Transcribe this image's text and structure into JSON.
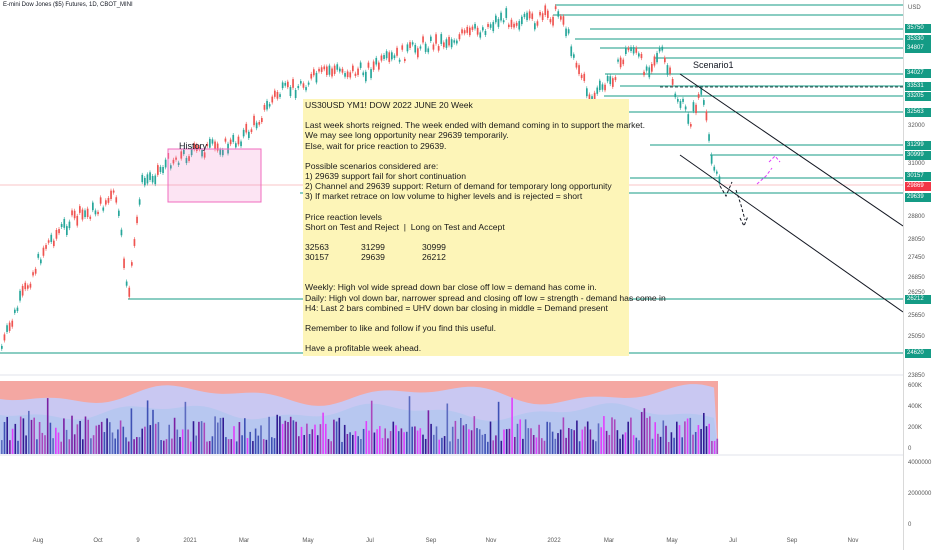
{
  "header": {
    "symbol_title": "E-mini Dow Jones ($5) Futures, 1D, CBOT_MINI"
  },
  "price_axis": {
    "currency": "USD",
    "ticks": [
      "32000",
      "31000",
      "28800",
      "28050",
      "27450",
      "26850",
      "26250",
      "25650",
      "25050",
      "23850"
    ],
    "tags": [
      {
        "label": "35750",
        "color": "#149b85"
      },
      {
        "label": "35330",
        "color": "#149b85"
      },
      {
        "label": "34807",
        "color": "#149b85"
      },
      {
        "label": "34027",
        "color": "#149b85"
      },
      {
        "label": "33531",
        "color": "#149b85"
      },
      {
        "label": "33205",
        "color": "#149b85"
      },
      {
        "label": "32563",
        "color": "#149b85"
      },
      {
        "label": "31299",
        "color": "#149b85"
      },
      {
        "label": "30999",
        "color": "#149b85"
      },
      {
        "label": "30157",
        "color": "#149b85"
      },
      {
        "label": "29869",
        "color": "#f23645"
      },
      {
        "label": "29639",
        "color": "#149b85"
      },
      {
        "label": "26212",
        "color": "#149b85"
      },
      {
        "label": "24620",
        "color": "#149b85"
      }
    ],
    "volume_ticks": [
      "600K",
      "400K",
      "200K",
      "0"
    ],
    "indicator_ticks": [
      "4000000",
      "2000000",
      "0"
    ]
  },
  "annotations": {
    "history_label": "History",
    "scenario_label": "Scenario1"
  },
  "note": {
    "title": "US30USD YM1! DOW 2022 JUNE 20 Week",
    "para1": [
      "Last week shorts reigned. The week ended with demand coming in to support the market.",
      "We may see long opportunity near 29639 temporarily.",
      "Else, wait for price reaction to 29639."
    ],
    "para2": [
      "Possible scenarios considered are:",
      "1) 29639 support fail for short continuation",
      "2) Channel and 29639 support: Return of demand for temporary long opportunity",
      "3) If market retrace on low volume to higher levels and is rejected = short"
    ],
    "para3": [
      "Price reaction levels",
      "Short on Test and Reject  |  Long on Test and Accept"
    ],
    "levels_row1": [
      "32563",
      "31299",
      "30999"
    ],
    "levels_row2": [
      "30157",
      "29639",
      "26212"
    ],
    "para4": [
      "Weekly: High vol wide spread down bar close off low = demand has come in.",
      "Daily: High vol down bar, narrower spread and closing off low = strength - demand has come in",
      "H4: Last 2 bars combined = UHV down bar closing in middle = Demand present"
    ],
    "para5": "Remember to like and follow if you find this useful.",
    "para6": "Have a profitable week ahead."
  },
  "time_axis": {
    "labels": [
      "Aug",
      "Oct",
      "9",
      "2021",
      "Mar",
      "May",
      "Jul",
      "Sep",
      "Nov",
      "2022",
      "Mar",
      "May",
      "Jul",
      "Sep",
      "Nov"
    ]
  },
  "colors": {
    "level_line": "#149b85",
    "price_tag": "#f23645",
    "up_bar": "#26a69a",
    "down_bar": "#ef5350",
    "note_bg": "#fdf5b8",
    "history_box": "#f06bbf",
    "volume_bg": "#f4a7a2"
  }
}
